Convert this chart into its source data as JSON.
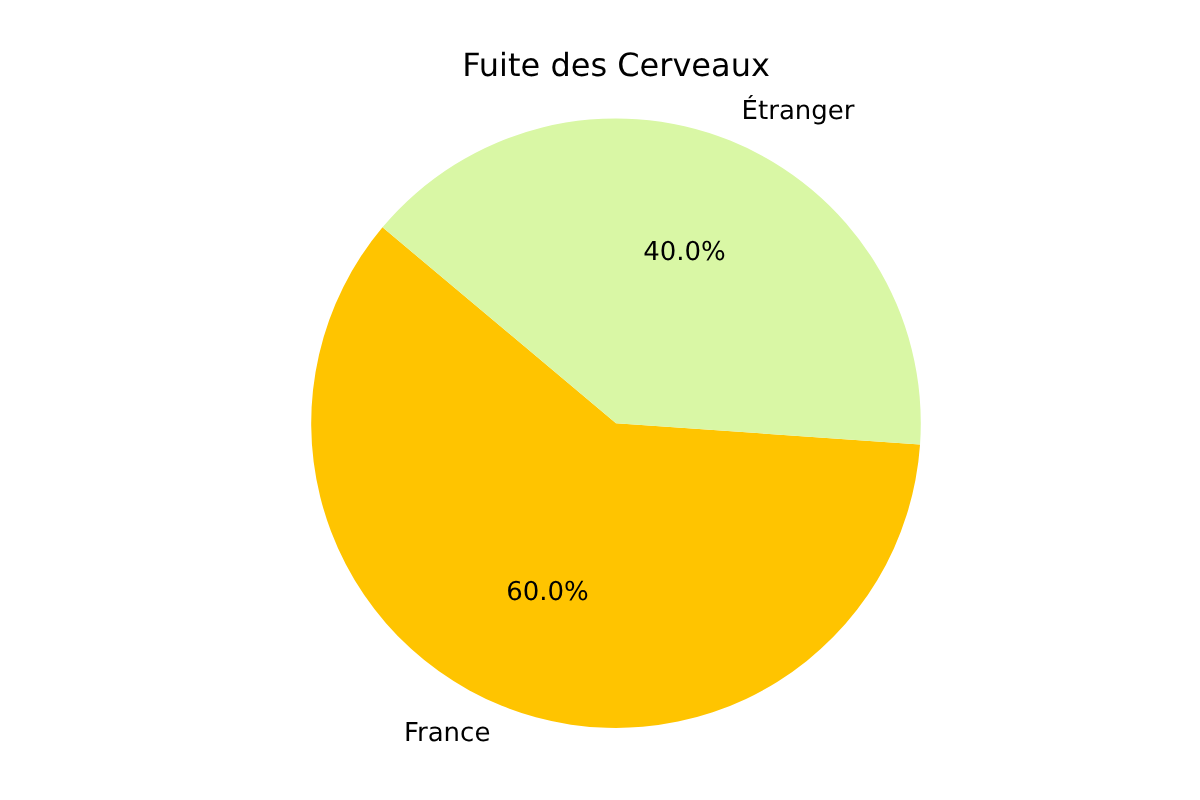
{
  "chart_data": {
    "type": "pie",
    "title": "Fuite des Cerveaux",
    "categories": [
      "France",
      "Étranger"
    ],
    "values": [
      60,
      40
    ],
    "colors": [
      "#ffc400",
      "#d9f7a5"
    ],
    "value_labels": [
      "60.0%",
      "40.0%"
    ],
    "legend": false
  }
}
